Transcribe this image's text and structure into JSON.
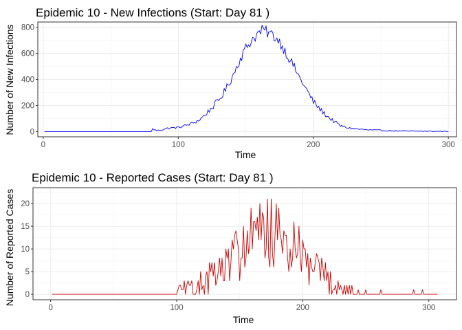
{
  "chart_data": [
    {
      "type": "line",
      "title": "Epidemic 10 - New Infections (Start: Day 81 )",
      "xlabel": "Time",
      "ylabel": "Number of New Infections",
      "xlim": [
        -4,
        306
      ],
      "ylim": [
        -40,
        840
      ],
      "x_ticks": [
        0,
        100,
        200,
        300
      ],
      "y_ticks": [
        0,
        200,
        400,
        600,
        800
      ],
      "x_range": [
        1,
        300
      ],
      "grid": true,
      "line_color": "#0000ff",
      "start_day": 81,
      "series": [
        {
          "x": [
            1,
            80,
            81,
            84,
            88,
            92,
            96,
            100,
            105,
            110,
            115,
            120,
            125,
            130,
            135,
            140,
            145,
            150,
            155,
            160,
            163,
            166,
            170,
            175,
            180,
            185,
            190,
            195,
            200,
            205,
            210,
            215,
            220,
            225,
            230,
            240,
            250,
            260,
            270,
            280,
            290,
            300
          ],
          "y": [
            0,
            0,
            20,
            8,
            15,
            25,
            28,
            32,
            45,
            62,
            85,
            130,
            185,
            240,
            320,
            420,
            540,
            640,
            710,
            760,
            780,
            760,
            740,
            690,
            600,
            510,
            410,
            320,
            230,
            170,
            120,
            80,
            45,
            30,
            22,
            13,
            9,
            6,
            4,
            3,
            2,
            1
          ]
        }
      ]
    },
    {
      "type": "line",
      "title": "Epidemic 10 - Reported Cases (Start: Day 81 )",
      "xlabel": "Time",
      "ylabel": "Number of Reported Cases",
      "xlim": [
        -14,
        322
      ],
      "ylim": [
        -1.2,
        23.5
      ],
      "x_ticks": [
        0,
        100,
        200,
        300
      ],
      "y_ticks": [
        0,
        5,
        10,
        15,
        20
      ],
      "x_range": [
        1,
        307
      ],
      "grid": true,
      "line_color": "#cc0000",
      "start_day": 81,
      "series": [
        {
          "x": [
            1,
            95,
            100,
            105,
            110,
            115,
            120,
            125,
            130,
            135,
            140,
            145,
            150,
            155,
            160,
            165,
            170,
            175,
            180,
            185,
            190,
            195,
            200,
            205,
            210,
            215,
            220,
            225,
            230,
            235,
            240,
            245,
            250,
            255,
            260,
            265,
            270,
            275,
            280,
            290,
            307
          ],
          "y": [
            0,
            0,
            0.5,
            1,
            1,
            1.5,
            2,
            3,
            4,
            5,
            6,
            8,
            10,
            11,
            12,
            13,
            13,
            14,
            12,
            11,
            10,
            9,
            8,
            6,
            5,
            4,
            3,
            2,
            1.5,
            1,
            0.8,
            0.6,
            0.5,
            0.4,
            0.3,
            0.3,
            0.2,
            0.2,
            0.1,
            0.1,
            0
          ]
        }
      ]
    }
  ]
}
